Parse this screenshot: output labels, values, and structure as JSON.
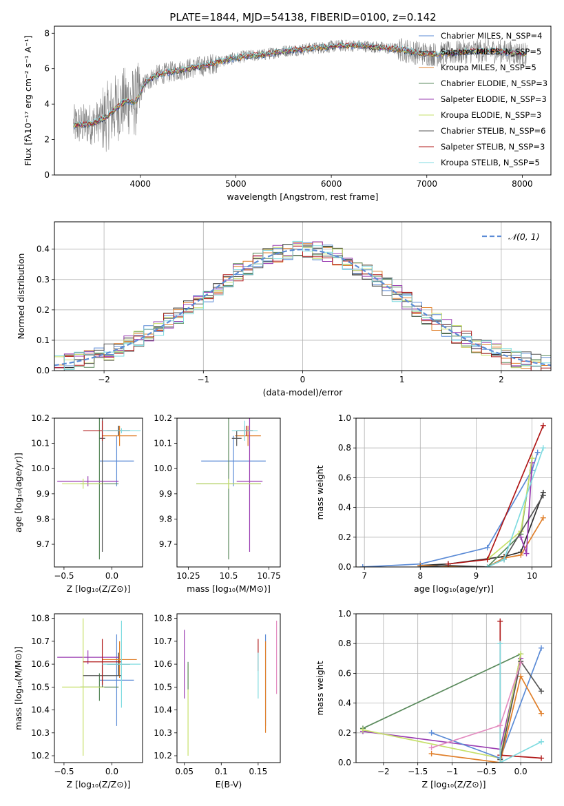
{
  "figure_title": "PLATE=1844, MJD=54138, FIBERID=0100, z=0.142",
  "palette": {
    "Chabrier MILES": "#5b8bd6",
    "Salpeter MILES": "#2e2e2e",
    "Kroupa MILES": "#e07f2a",
    "Chabrier ELODIE": "#5a8a5c",
    "Salpeter ELODIE": "#9a3cb2",
    "Kroupa ELODIE": "#c6e06a",
    "Chabrier STELIB": "#555555",
    "Salpeter STELIB": "#b01818",
    "Kroupa STELIB": "#7fdbe0"
  },
  "chart_data": [
    {
      "id": "spectrum",
      "type": "line",
      "title": "PLATE=1844, MJD=54138, FIBERID=0100, z=0.142",
      "xlabel": "wavelength [Angstrom, rest frame]",
      "ylabel": "Flux [fλ10⁻¹⁷ erg cm⁻² s⁻¹ A⁻¹]",
      "xlim": [
        3100,
        8300
      ],
      "ylim": [
        0,
        8.4
      ],
      "xticks": [
        4000,
        5000,
        6000,
        7000,
        8000
      ],
      "yticks": [
        0,
        2,
        4,
        6,
        8
      ],
      "grid": false,
      "legend_position": "top-right",
      "legend": [
        "Chabrier MILES, N_SSP=4",
        "Salpeter MILES, N_SSP=5",
        "Kroupa MILES, N_SSP=5",
        "Chabrier ELODIE, N_SSP=3",
        "Salpeter ELODIE, N_SSP=3",
        "Kroupa ELODIE, N_SSP=3",
        "Chabrier STELIB, N_SSP=6",
        "Salpeter STELIB, N_SSP=3",
        "Kroupa STELIB, N_SSP=5"
      ],
      "data_series_color": "#808080",
      "continuum": {
        "x": [
          3300,
          3500,
          3650,
          3750,
          3850,
          3950,
          4050,
          4150,
          4300,
          4500,
          4700,
          4900,
          5100,
          5300,
          5500,
          5700,
          5900,
          6100,
          6300,
          6500,
          6700,
          6900,
          7100,
          7300,
          7500,
          7700,
          7900,
          8050
        ],
        "y": [
          2.8,
          2.9,
          3.3,
          3.8,
          4.2,
          4.1,
          5.2,
          5.6,
          5.8,
          6.0,
          6.2,
          6.5,
          6.7,
          6.8,
          7.0,
          7.1,
          7.2,
          7.3,
          7.3,
          7.2,
          7.1,
          6.9,
          6.8,
          6.9,
          7.0,
          7.0,
          6.9,
          6.8
        ]
      }
    },
    {
      "id": "residuals",
      "type": "line",
      "xlabel": "(data-model)/error",
      "ylabel": "Normed distribution",
      "xlim": [
        -2.5,
        2.5
      ],
      "ylim": [
        0,
        0.49
      ],
      "xticks": [
        -2,
        -1,
        0,
        1,
        2
      ],
      "yticks": [
        0.0,
        0.1,
        0.2,
        0.3,
        0.4
      ],
      "grid": true,
      "legend_position": "top-right",
      "legend": [
        "𝒩(0, 1)"
      ],
      "normal_color": "#5b8bd6"
    },
    {
      "id": "age-vs-z",
      "type": "scatter",
      "xlabel": "Z [log₁₀(Z/Z⊙)]",
      "ylabel": "age [log₁₀(age/yr)]",
      "xlim": [
        -0.6,
        0.32
      ],
      "ylim": [
        9.61,
        10.2
      ],
      "xticks": [
        -0.5,
        0.0
      ],
      "yticks": [
        9.7,
        9.8,
        9.9,
        10.0,
        10.1,
        10.2
      ],
      "grid": false,
      "points": [
        {
          "model": "Chabrier MILES",
          "x": 0.05,
          "y": 10.03,
          "xerr": 0.18,
          "yerr": 0.1
        },
        {
          "model": "Salpeter MILES",
          "x": 0.07,
          "y": 10.15,
          "xerr": 0.12,
          "yerr": 0.02
        },
        {
          "model": "Kroupa MILES",
          "x": 0.08,
          "y": 10.13,
          "xerr": 0.18,
          "yerr": 0.04
        },
        {
          "model": "Chabrier ELODIE",
          "x": -0.13,
          "y": 9.94,
          "xerr": 0.2,
          "yerr": 0.3
        },
        {
          "model": "Salpeter ELODIE",
          "x": -0.25,
          "y": 9.95,
          "xerr": 0.32,
          "yerr": 0.02
        },
        {
          "model": "Kroupa ELODIE",
          "x": -0.3,
          "y": 9.94,
          "xerr": 0.22,
          "yerr": 0.02
        },
        {
          "model": "Chabrier STELIB",
          "x": -0.1,
          "y": 10.12,
          "xerr": 0.03,
          "yerr": 0.45
        },
        {
          "model": "Salpeter STELIB",
          "x": -0.1,
          "y": 10.15,
          "xerr": 0.2,
          "yerr": 0.04
        },
        {
          "model": "Kroupa STELIB",
          "x": 0.1,
          "y": 10.15,
          "xerr": 0.2,
          "yerr": 0.01
        }
      ]
    },
    {
      "id": "age-vs-mass",
      "type": "scatter",
      "xlabel": "mass [log₁₀(M/M⊙)]",
      "ylabel": "",
      "xlim": [
        10.18,
        10.82
      ],
      "ylim": [
        9.61,
        10.2
      ],
      "xticks": [
        10.25,
        10.5,
        10.75
      ],
      "yticks": [
        9.7,
        9.8,
        9.9,
        10.0,
        10.1,
        10.2
      ],
      "grid": false,
      "points": [
        {
          "model": "Chabrier MILES",
          "x": 10.53,
          "y": 10.03,
          "xerr": 0.2,
          "yerr": 0.1
        },
        {
          "model": "Salpeter MILES",
          "x": 10.6,
          "y": 10.15,
          "xerr": 0.05,
          "yerr": 0.02
        },
        {
          "model": "Kroupa MILES",
          "x": 10.62,
          "y": 10.13,
          "xerr": 0.08,
          "yerr": 0.04
        },
        {
          "model": "Chabrier ELODIE",
          "x": 10.5,
          "y": 9.94,
          "xerr": 0.2,
          "yerr": 0.3
        },
        {
          "model": "Salpeter ELODIE",
          "x": 10.63,
          "y": 9.95,
          "xerr": 0.08,
          "yerr": 0.28
        },
        {
          "model": "Kroupa ELODIE",
          "x": 10.5,
          "y": 9.94,
          "xerr": 0.2,
          "yerr": 0.02
        },
        {
          "model": "Chabrier STELIB",
          "x": 10.55,
          "y": 10.12,
          "xerr": 0.03,
          "yerr": 0.03
        },
        {
          "model": "Salpeter STELIB",
          "x": 10.61,
          "y": 10.15,
          "xerr": 0.04,
          "yerr": 0.02
        },
        {
          "model": "Kroupa STELIB",
          "x": 10.6,
          "y": 10.15,
          "xerr": 0.08,
          "yerr": 0.04
        }
      ]
    },
    {
      "id": "massweight-vs-age",
      "type": "line",
      "xlabel": "age [log₁₀(age/yr)]",
      "ylabel": "mass weight",
      "xlim": [
        6.85,
        10.35
      ],
      "ylim": [
        0,
        1.0
      ],
      "xticks": [
        7,
        8,
        9,
        10
      ],
      "yticks": [
        0.0,
        0.2,
        0.4,
        0.6,
        0.8,
        1.0
      ],
      "grid": true,
      "series": [
        {
          "model": "Chabrier MILES",
          "x": [
            6.97,
            8.0,
            9.2,
            10.0,
            10.1
          ],
          "y": [
            0.0,
            0.02,
            0.13,
            0.65,
            0.77
          ]
        },
        {
          "model": "Salpeter MILES",
          "x": [
            8.0,
            8.5,
            9.5,
            9.8,
            10.2
          ],
          "y": [
            0.01,
            0.02,
            0.07,
            0.1,
            0.5
          ]
        },
        {
          "model": "Kroupa MILES",
          "x": [
            8.0,
            9.2,
            9.5,
            9.8,
            10.2
          ],
          "y": [
            0.01,
            0.0,
            0.06,
            0.08,
            0.33
          ]
        },
        {
          "model": "Chabrier ELODIE",
          "x": [
            9.2,
            9.8,
            10.0
          ],
          "y": [
            0.0,
            0.22,
            0.73
          ]
        },
        {
          "model": "Salpeter ELODIE",
          "x": [
            9.8,
            9.9,
            10.0
          ],
          "y": [
            0.2,
            0.09,
            0.7
          ]
        },
        {
          "model": "Kroupa ELODIE",
          "x": [
            9.2,
            9.8,
            10.0
          ],
          "y": [
            0.05,
            0.24,
            0.73
          ]
        },
        {
          "model": "Chabrier STELIB",
          "x": [
            8.0,
            8.5,
            9.2,
            9.5,
            10.2
          ],
          "y": [
            0.0,
            0.01,
            0.0,
            0.05,
            0.48
          ]
        },
        {
          "model": "Salpeter STELIB",
          "x": [
            8.5,
            9.2,
            10.2
          ],
          "y": [
            0.02,
            0.05,
            0.95
          ]
        },
        {
          "model": "Kroupa STELIB",
          "x": [
            9.2,
            9.5,
            10.2
          ],
          "y": [
            0.0,
            0.05,
            0.8
          ]
        }
      ]
    },
    {
      "id": "mass-vs-z",
      "type": "scatter",
      "xlabel": "Z [log₁₀(Z/Z⊙)]",
      "ylabel": "mass [log₁₀(M/M⊙)]",
      "xlim": [
        -0.6,
        0.32
      ],
      "ylim": [
        10.17,
        10.82
      ],
      "xticks": [
        -0.5,
        0.0
      ],
      "yticks": [
        10.2,
        10.3,
        10.4,
        10.5,
        10.6,
        10.7,
        10.8
      ],
      "grid": false,
      "points": [
        {
          "model": "Chabrier MILES",
          "x": 0.05,
          "y": 10.53,
          "xerr": 0.18,
          "yerr": 0.2
        },
        {
          "model": "Salpeter MILES",
          "x": 0.07,
          "y": 10.6,
          "xerr": 0.12,
          "yerr": 0.05
        },
        {
          "model": "Kroupa MILES",
          "x": 0.08,
          "y": 10.62,
          "xerr": 0.18,
          "yerr": 0.08
        },
        {
          "model": "Chabrier ELODIE",
          "x": -0.13,
          "y": 10.5,
          "xerr": 0.2,
          "yerr": 0.06
        },
        {
          "model": "Salpeter ELODIE",
          "x": -0.25,
          "y": 10.63,
          "xerr": 0.32,
          "yerr": 0.03
        },
        {
          "model": "Kroupa ELODIE",
          "x": -0.3,
          "y": 10.5,
          "xerr": 0.22,
          "yerr": 0.3
        },
        {
          "model": "Chabrier STELIB",
          "x": -0.1,
          "y": 10.55,
          "xerr": 0.2,
          "yerr": 0.05
        },
        {
          "model": "Salpeter STELIB",
          "x": -0.1,
          "y": 10.61,
          "xerr": 0.2,
          "yerr": 0.1
        },
        {
          "model": "Kroupa STELIB",
          "x": 0.1,
          "y": 10.6,
          "xerr": 0.2,
          "yerr": 0.19
        }
      ]
    },
    {
      "id": "mass-vs-ebv",
      "type": "scatter",
      "xlabel": "E(B-V)",
      "ylabel": "",
      "xlim": [
        0.04,
        0.18
      ],
      "ylim": [
        10.17,
        10.82
      ],
      "xticks": [
        0.05,
        0.1,
        0.15
      ],
      "yticks": [
        10.2,
        10.3,
        10.4,
        10.5,
        10.6,
        10.7,
        10.8
      ],
      "grid": false,
      "points": [
        {
          "model": "Chabrier MILES",
          "x": 0.16,
          "y": 10.53,
          "yerr": 0.2
        },
        {
          "model": "Kroupa MILES",
          "x": 0.16,
          "y": 10.5,
          "yerr": 0.2
        },
        {
          "model": "Salpeter ELODIE",
          "x": 0.05,
          "y": 10.6,
          "yerr": 0.15
        },
        {
          "model": "Kroupa ELODIE",
          "x": 0.055,
          "y": 10.4,
          "yerr": 0.2
        },
        {
          "model": "Chabrier ELODIE",
          "x": 0.055,
          "y": 10.55,
          "yerr": 0.06
        },
        {
          "model": "Salpeter STELIB",
          "x": 0.15,
          "y": 10.64,
          "yerr": 0.07
        },
        {
          "model": "Kroupa STELIB",
          "x": 0.15,
          "y": 10.55,
          "yerr": 0.1
        },
        {
          "model": "Pink",
          "x": 0.175,
          "y": 10.63,
          "yerr": 0.16
        }
      ]
    },
    {
      "id": "massweight-vs-z",
      "type": "line",
      "xlabel": "Z [log₁₀(Z/Z⊙)]",
      "ylabel": "mass weight",
      "xlim": [
        -2.4,
        0.45
      ],
      "ylim": [
        0,
        1.0
      ],
      "xticks": [
        -2.0,
        -1.5,
        -1.0,
        -0.5,
        0.0
      ],
      "yticks": [
        0.0,
        0.2,
        0.4,
        0.6,
        0.8,
        1.0
      ],
      "grid": true,
      "series": [
        {
          "model": "Chabrier ELODIE",
          "x": [
            -2.3,
            0.0,
            -0.3
          ],
          "y": [
            0.23,
            0.73,
            0.03
          ]
        },
        {
          "model": "Salpeter ELODIE",
          "x": [
            -2.3,
            -0.3,
            0.0
          ],
          "y": [
            0.21,
            0.09,
            0.7
          ]
        },
        {
          "model": "Kroupa ELODIE",
          "x": [
            -2.3,
            -0.3,
            0.0
          ],
          "y": [
            0.22,
            0.03,
            0.73
          ]
        },
        {
          "model": "Chabrier MILES",
          "x": [
            -1.3,
            -0.3,
            0.3
          ],
          "y": [
            0.2,
            0.03,
            0.77
          ]
        },
        {
          "model": "Kroupa MILES",
          "x": [
            -1.3,
            -0.3,
            0.0,
            0.3
          ],
          "y": [
            0.06,
            0.0,
            0.58,
            0.33
          ]
        },
        {
          "model": "Salpeter STELIB",
          "x": [
            -0.3,
            -0.3,
            0.3
          ],
          "y": [
            0.95,
            0.05,
            0.03
          ]
        },
        {
          "model": "Chabrier STELIB",
          "x": [
            -0.3,
            0.0,
            0.3
          ],
          "y": [
            0.02,
            0.68,
            0.48
          ]
        },
        {
          "model": "Kroupa STELIB",
          "x": [
            -0.3,
            -0.3,
            0.3
          ],
          "y": [
            0.8,
            0.0,
            0.14
          ]
        },
        {
          "model": "Pink",
          "x": [
            -1.3,
            -0.3,
            0.0
          ],
          "y": [
            0.1,
            0.25,
            0.67
          ]
        }
      ]
    }
  ]
}
